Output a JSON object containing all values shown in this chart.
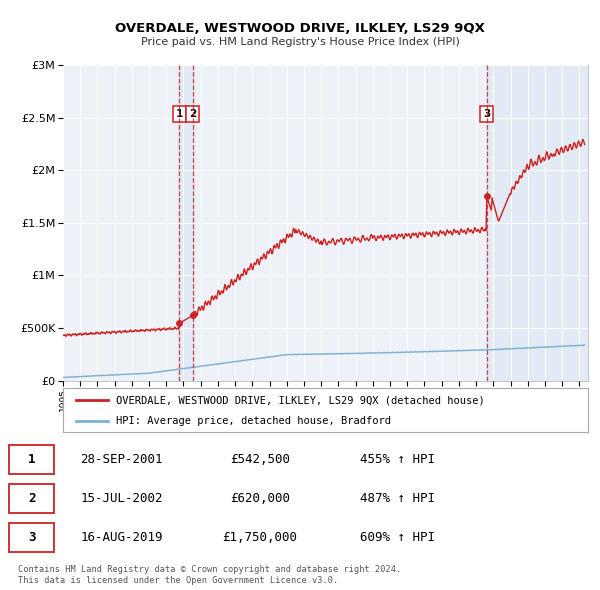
{
  "title": "OVERDALE, WESTWOOD DRIVE, ILKLEY, LS29 9QX",
  "subtitle": "Price paid vs. HM Land Registry's House Price Index (HPI)",
  "legend_line1": "OVERDALE, WESTWOOD DRIVE, ILKLEY, LS29 9QX (detached house)",
  "legend_line2": "HPI: Average price, detached house, Bradford",
  "footnote1": "Contains HM Land Registry data © Crown copyright and database right 2024.",
  "footnote2": "This data is licensed under the Open Government Licence v3.0.",
  "transactions": [
    {
      "id": 1,
      "date": "28-SEP-2001",
      "price": 542500,
      "pct": "455%",
      "year": 2001.75
    },
    {
      "id": 2,
      "date": "15-JUL-2002",
      "price": 620000,
      "pct": "487%",
      "year": 2002.54
    },
    {
      "id": 3,
      "date": "16-AUG-2019",
      "price": 1750000,
      "pct": "609%",
      "year": 2019.62
    }
  ],
  "hpi_color": "#7bafd4",
  "price_color": "#cc2222",
  "marker_color": "#cc2222",
  "chart_bg": "#eef2f8",
  "shade_color": "#dce8f5",
  "ylim": [
    0,
    3000000
  ],
  "xlim_start": 1995.0,
  "xlim_end": 2025.5,
  "yticks": [
    0,
    500000,
    1000000,
    1500000,
    2000000,
    2500000,
    3000000
  ],
  "ytick_labels": [
    "£0",
    "£500K",
    "£1M",
    "£1.5M",
    "£2M",
    "£2.5M",
    "£3M"
  ]
}
